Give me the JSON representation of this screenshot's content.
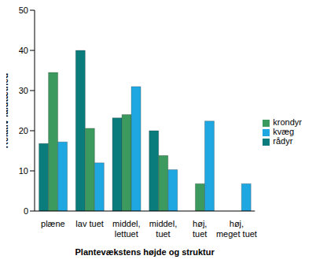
{
  "chart_data": {
    "type": "bar",
    "x_label": "Plantevækstens højde og struktur",
    "y_label": "Relativ faldtæthed",
    "categories": [
      "plæne",
      "lav tuet",
      "middel, lettuet",
      "middel, tuet",
      "høj, tuet",
      "høj, meget tuet"
    ],
    "series": [
      {
        "name": "rådyr",
        "color": "#0a7c7c",
        "values": [
          16.8,
          40,
          23.2,
          20,
          0,
          0
        ]
      },
      {
        "name": "krondyr",
        "color": "#3c9a5f",
        "values": [
          34.5,
          20.6,
          24,
          13.8,
          6.8,
          0
        ]
      },
      {
        "name": "kvæg",
        "color": "#1ea7e1",
        "values": [
          17.2,
          12,
          31,
          10.3,
          22.4,
          6.8
        ]
      }
    ],
    "ylim": [
      0,
      50
    ],
    "yticks": [
      0,
      10,
      20,
      30,
      40,
      50
    ],
    "grid": false,
    "legend": "right"
  }
}
